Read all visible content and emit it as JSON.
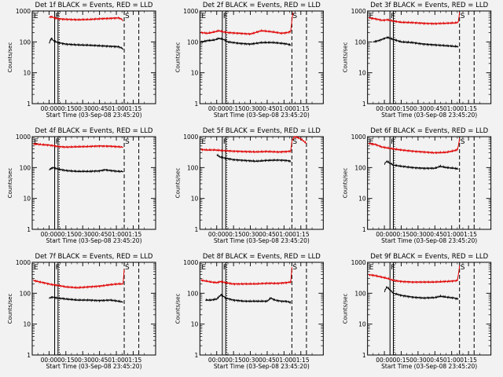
{
  "figure": {
    "background": "#f2f2f2",
    "event_color": "#000000",
    "lld_color": "#e00000"
  },
  "chart_data": [
    {
      "type": "line",
      "title": "Det 1f BLACK = Events, RED = LLD",
      "ylabel": "Counts/sec",
      "xlabel": "Start Time (03-Sep-08 23:45:20)",
      "scale_y": "log",
      "ylim": [
        1,
        1000
      ],
      "yticks": [
        "1",
        "10",
        "100",
        "1000"
      ],
      "xlim": [
        -15,
        95
      ],
      "xticks": [
        "00:00",
        "00:15",
        "00:30",
        "00:45",
        "01:00",
        "01:15"
      ],
      "annotations": [
        "E",
        "F",
        "S"
      ],
      "markers_min": {
        "solid": [
          5,
          8
        ],
        "dotted": [
          8
        ],
        "dashed": [
          67,
          80
        ]
      },
      "series": [
        {
          "name": "BLACK",
          "color": "#000000",
          "x": [
            0,
            2,
            4,
            8,
            15,
            25,
            35,
            45,
            55,
            62,
            64,
            66
          ],
          "y": [
            90,
            130,
            110,
            95,
            85,
            80,
            78,
            75,
            72,
            70,
            65,
            60
          ]
        },
        {
          "name": "RED",
          "color": "#e00000",
          "x": [
            0,
            2,
            5,
            8,
            15,
            25,
            35,
            45,
            55,
            62,
            64,
            66
          ],
          "y": [
            640,
            650,
            600,
            560,
            540,
            520,
            530,
            560,
            580,
            600,
            560,
            500
          ]
        }
      ]
    },
    {
      "type": "line",
      "title": "Det 2f BLACK = Events, RED = LLD",
      "ylabel": "Counts/sec",
      "xlabel": "Start Time (03-Sep-08 23:45:20)",
      "scale_y": "log",
      "ylim": [
        1,
        1000
      ],
      "yticks": [
        "1",
        "10",
        "100",
        "1000"
      ],
      "xlim": [
        -15,
        95
      ],
      "xticks": [
        "00:00",
        "00:15",
        "00:30",
        "00:45",
        "01:00",
        "01:15"
      ],
      "annotations": [
        "E",
        "F",
        "S"
      ],
      "markers_min": {
        "solid": [
          5,
          8
        ],
        "dotted": [
          8
        ],
        "dashed": [
          67,
          80
        ]
      },
      "series": [
        {
          "name": "BLACK",
          "color": "#000000",
          "x": [
            -14,
            -8,
            -2,
            2,
            6,
            10,
            20,
            30,
            40,
            50,
            58,
            63,
            66
          ],
          "y": [
            100,
            110,
            115,
            130,
            120,
            100,
            90,
            85,
            95,
            95,
            90,
            85,
            80
          ]
        },
        {
          "name": "RED",
          "color": "#e00000",
          "x": [
            -14,
            -8,
            -2,
            2,
            6,
            10,
            20,
            30,
            40,
            50,
            58,
            63,
            66,
            67,
            68
          ],
          "y": [
            200,
            190,
            210,
            230,
            210,
            200,
            190,
            180,
            230,
            210,
            190,
            200,
            220,
            500,
            900
          ]
        }
      ]
    },
    {
      "type": "line",
      "title": "Det 3f BLACK = Events, RED = LLD",
      "ylabel": "Counts/sec",
      "xlabel": "Start Time (03-Sep-08 23:45:20)",
      "scale_y": "log",
      "ylim": [
        1,
        1000
      ],
      "yticks": [
        "1",
        "10",
        "100",
        "1000"
      ],
      "xlim": [
        -15,
        95
      ],
      "xticks": [
        "00:00",
        "00:15",
        "00:30",
        "00:45",
        "01:00",
        "01:15"
      ],
      "annotations": [
        "E",
        "F",
        "S"
      ],
      "markers_min": {
        "solid": [
          5,
          8
        ],
        "dotted": [
          8
        ],
        "dashed": [
          67,
          80
        ]
      },
      "series": [
        {
          "name": "BLACK",
          "color": "#000000",
          "x": [
            -10,
            -5,
            0,
            3,
            8,
            15,
            25,
            35,
            45,
            55,
            62,
            66
          ],
          "y": [
            100,
            110,
            130,
            140,
            120,
            100,
            95,
            85,
            80,
            75,
            72,
            70
          ]
        },
        {
          "name": "RED",
          "color": "#e00000",
          "x": [
            -14,
            -8,
            -2,
            3,
            8,
            15,
            25,
            35,
            45,
            55,
            62,
            65,
            66,
            67
          ],
          "y": [
            600,
            560,
            500,
            520,
            470,
            430,
            420,
            400,
            390,
            400,
            410,
            420,
            450,
            900
          ]
        }
      ]
    },
    {
      "type": "line",
      "title": "Det 4f BLACK = Events, RED = LLD",
      "ylabel": "Counts/sec",
      "xlabel": "Start Time (03-Sep-08 23:45:20)",
      "scale_y": "log",
      "ylim": [
        1,
        1000
      ],
      "yticks": [
        "1",
        "10",
        "100",
        "1000"
      ],
      "xlim": [
        -15,
        95
      ],
      "xticks": [
        "00:00",
        "00:15",
        "00:30",
        "00:45",
        "01:00",
        "01:15"
      ],
      "annotations": [
        "E",
        "F",
        "S"
      ],
      "markers_min": {
        "solid": [
          5,
          8
        ],
        "dotted": [
          8
        ],
        "dashed": [
          67,
          80
        ]
      },
      "series": [
        {
          "name": "BLACK",
          "color": "#000000",
          "x": [
            0,
            2,
            4,
            8,
            15,
            25,
            35,
            45,
            50,
            55,
            62,
            66
          ],
          "y": [
            85,
            95,
            100,
            90,
            80,
            75,
            75,
            78,
            85,
            80,
            75,
            75
          ]
        },
        {
          "name": "RED",
          "color": "#e00000",
          "x": [
            -14,
            -8,
            -2,
            3,
            8,
            15,
            25,
            35,
            45,
            55,
            62,
            66
          ],
          "y": [
            580,
            560,
            540,
            520,
            480,
            460,
            470,
            480,
            500,
            490,
            470,
            460
          ]
        }
      ]
    },
    {
      "type": "line",
      "title": "Det 5f BLACK = Events, RED = LLD",
      "ylabel": "Counts/sec",
      "xlabel": "Start Time (03-Sep-08 23:45:20)",
      "scale_y": "log",
      "ylim": [
        1,
        1000
      ],
      "yticks": [
        "1",
        "10",
        "100",
        "1000"
      ],
      "xlim": [
        -15,
        95
      ],
      "xticks": [
        "00:00",
        "00:15",
        "00:30",
        "00:45",
        "01:00",
        "01:15"
      ],
      "annotations": [
        "E",
        "F",
        "S"
      ],
      "markers_min": {
        "solid": [
          5,
          8
        ],
        "dotted": [
          8
        ],
        "dashed": [
          67,
          80
        ]
      },
      "series": [
        {
          "name": "BLACK",
          "color": "#000000",
          "x": [
            0,
            3,
            8,
            15,
            25,
            35,
            45,
            55,
            62,
            66
          ],
          "y": [
            260,
            220,
            200,
            180,
            170,
            160,
            170,
            175,
            170,
            160
          ]
        },
        {
          "name": "RED",
          "color": "#e00000",
          "x": [
            -14,
            -8,
            -2,
            3,
            8,
            15,
            25,
            35,
            45,
            55,
            62,
            66,
            67,
            69,
            72,
            76,
            80
          ],
          "y": [
            380,
            370,
            370,
            360,
            350,
            340,
            330,
            320,
            330,
            320,
            330,
            340,
            700,
            1000,
            950,
            800,
            600
          ]
        }
      ]
    },
    {
      "type": "line",
      "title": "Det 6f BLACK = Events, RED = LLD",
      "ylabel": "Counts/sec",
      "xlabel": "Start Time (03-Sep-08 23:45:20)",
      "scale_y": "log",
      "ylim": [
        1,
        1000
      ],
      "yticks": [
        "1",
        "10",
        "100",
        "1000"
      ],
      "xlim": [
        -15,
        95
      ],
      "xticks": [
        "00:00",
        "00:15",
        "00:30",
        "00:45",
        "01:00",
        "01:15"
      ],
      "annotations": [
        "E",
        "F",
        "S"
      ],
      "markers_min": {
        "solid": [
          5,
          8
        ],
        "dotted": [
          8
        ],
        "dashed": [
          67,
          80
        ]
      },
      "series": [
        {
          "name": "BLACK",
          "color": "#000000",
          "x": [
            0,
            2,
            5,
            8,
            15,
            25,
            35,
            45,
            50,
            55,
            62,
            66
          ],
          "y": [
            130,
            160,
            140,
            120,
            110,
            100,
            95,
            95,
            110,
            100,
            95,
            90
          ]
        },
        {
          "name": "RED",
          "color": "#e00000",
          "x": [
            -14,
            -8,
            -2,
            3,
            8,
            15,
            25,
            35,
            45,
            55,
            62,
            65,
            66,
            67
          ],
          "y": [
            600,
            560,
            460,
            430,
            400,
            370,
            340,
            320,
            300,
            310,
            350,
            380,
            500,
            900
          ]
        }
      ]
    },
    {
      "type": "line",
      "title": "Det 7f BLACK = Events, RED = LLD",
      "ylabel": "Counts/sec",
      "xlabel": "Start Time (03-Sep-08 23:45:20)",
      "scale_y": "log",
      "ylim": [
        1,
        1000
      ],
      "yticks": [
        "1",
        "10",
        "100",
        "1000"
      ],
      "xlim": [
        -15,
        95
      ],
      "xticks": [
        "00:00",
        "00:15",
        "00:30",
        "00:45",
        "01:00",
        "01:15"
      ],
      "annotations": [
        "E",
        "F",
        "S"
      ],
      "markers_min": {
        "solid": [
          5,
          8
        ],
        "dotted": [
          8
        ],
        "dashed": [
          67,
          80
        ]
      },
      "series": [
        {
          "name": "BLACK",
          "color": "#000000",
          "x": [
            0,
            3,
            8,
            15,
            25,
            35,
            45,
            55,
            62,
            66
          ],
          "y": [
            70,
            75,
            70,
            65,
            60,
            60,
            58,
            60,
            55,
            52
          ]
        },
        {
          "name": "RED",
          "color": "#e00000",
          "x": [
            -14,
            -10,
            -5,
            0,
            3,
            8,
            15,
            25,
            35,
            45,
            55,
            62,
            66,
            67
          ],
          "y": [
            260,
            240,
            220,
            200,
            190,
            180,
            160,
            150,
            160,
            170,
            190,
            200,
            200,
            600
          ]
        }
      ]
    },
    {
      "type": "line",
      "title": "Det 8f BLACK = Events, RED = LLD",
      "ylabel": "Counts/sec",
      "xlabel": "Start Time (03-Sep-08 23:45:20)",
      "scale_y": "log",
      "ylim": [
        1,
        1000
      ],
      "yticks": [
        "1",
        "10",
        "100",
        "1000"
      ],
      "xlim": [
        -15,
        95
      ],
      "xticks": [
        "00:00",
        "00:15",
        "00:30",
        "00:45",
        "01:00",
        "01:15"
      ],
      "annotations": [
        "E",
        "F",
        "S"
      ],
      "markers_min": {
        "solid": [
          5,
          8
        ],
        "dotted": [
          8
        ],
        "dashed": [
          67,
          80
        ]
      },
      "series": [
        {
          "name": "BLACK",
          "color": "#000000",
          "x": [
            -10,
            -5,
            0,
            4,
            8,
            15,
            25,
            35,
            45,
            48,
            52,
            58,
            62,
            66
          ],
          "y": [
            60,
            60,
            65,
            90,
            70,
            60,
            55,
            55,
            55,
            70,
            60,
            55,
            55,
            50
          ]
        },
        {
          "name": "RED",
          "color": "#e00000",
          "x": [
            -14,
            -10,
            -5,
            0,
            4,
            8,
            15,
            25,
            35,
            45,
            55,
            62,
            66,
            67
          ],
          "y": [
            260,
            250,
            230,
            220,
            240,
            220,
            200,
            200,
            200,
            210,
            210,
            220,
            230,
            700
          ]
        }
      ]
    },
    {
      "type": "line",
      "title": "Det 9f BLACK = Events, RED = LLD",
      "ylabel": "Counts/sec",
      "xlabel": "Start Time (03-Sep-08 23:45:20)",
      "scale_y": "log",
      "ylim": [
        1,
        1000
      ],
      "yticks": [
        "1",
        "10",
        "100",
        "1000"
      ],
      "xlim": [
        -15,
        95
      ],
      "xticks": [
        "00:00",
        "00:15",
        "00:30",
        "00:45",
        "01:00",
        "01:15"
      ],
      "annotations": [
        "E",
        "F",
        "S"
      ],
      "markers_min": {
        "solid": [
          5,
          8
        ],
        "dotted": [
          8
        ],
        "dashed": [
          67,
          80
        ]
      },
      "series": [
        {
          "name": "BLACK",
          "color": "#000000",
          "x": [
            0,
            2,
            5,
            8,
            15,
            25,
            35,
            45,
            50,
            55,
            62,
            66
          ],
          "y": [
            110,
            160,
            130,
            100,
            85,
            75,
            70,
            72,
            80,
            75,
            70,
            65
          ]
        },
        {
          "name": "RED",
          "color": "#e00000",
          "x": [
            -14,
            -8,
            -2,
            3,
            8,
            15,
            25,
            35,
            45,
            55,
            62,
            65,
            66,
            67
          ],
          "y": [
            400,
            370,
            330,
            300,
            260,
            240,
            230,
            230,
            230,
            240,
            250,
            260,
            400,
            800
          ]
        }
      ]
    }
  ]
}
